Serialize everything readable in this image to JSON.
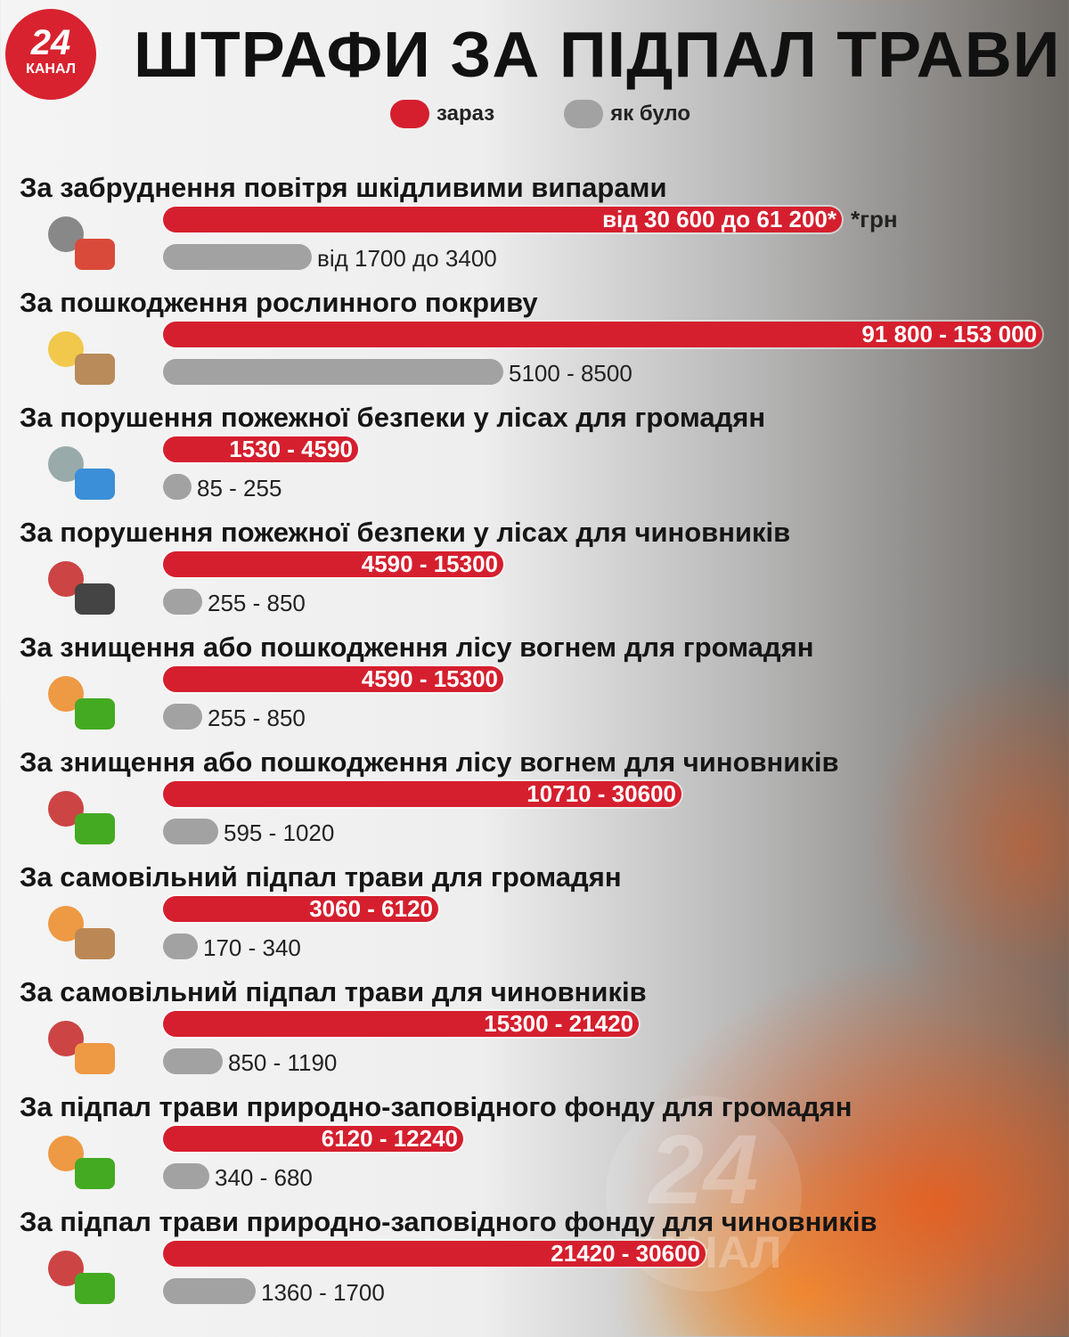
{
  "header": {
    "logo_number": "24",
    "logo_text": "КАНАЛ",
    "title": "ШТРАФИ ЗА ПІДПАЛ ТРАВИ"
  },
  "legend": {
    "now": "зараз",
    "before": "як було"
  },
  "unit_note": "*грн",
  "colors": {
    "now": "#d51f2e",
    "before": "#a2a2a2"
  },
  "chart_data": {
    "type": "bar",
    "title": "ШТРАФИ ЗА ПІДПАЛ ТРАВИ",
    "legend": [
      "зараз",
      "як було"
    ],
    "legend_placement": "top",
    "categories": [
      {
        "label": "За забруднення повітря шкідливими випарами",
        "icon": "car-smoke-icon",
        "now": "від 30 600 до 61 200*",
        "now_range": [
          30600,
          61200
        ],
        "before": "від 1700 до 3400",
        "before_range": [
          1700,
          3400
        ]
      },
      {
        "label": "За пошкодження рослинного покриву",
        "icon": "chainsaw-log-icon",
        "now": "91 800 - 153 000",
        "now_range": [
          91800,
          153000
        ],
        "before": "5100 - 8500",
        "before_range": [
          5100,
          8500
        ]
      },
      {
        "label": "За порушення пожежної безпеки у лісах для громадян",
        "icon": "garbage-pile-icon",
        "now": "1530 - 4590",
        "now_range": [
          1530,
          4590
        ],
        "before": "85 - 255",
        "before_range": [
          85,
          255
        ]
      },
      {
        "label": "За порушення пожежної безпеки у лісах для чиновників",
        "icon": "official-garbage-icon",
        "now": "4590 - 15300",
        "now_range": [
          4590,
          15300
        ],
        "before": "255 - 850",
        "before_range": [
          255,
          850
        ]
      },
      {
        "label": "За знищення або пошкодження лісу вогнем для громадян",
        "icon": "forest-fire-icon",
        "now": "4590 - 15300",
        "now_range": [
          4590,
          15300
        ],
        "before": "255 - 850",
        "before_range": [
          255,
          850
        ]
      },
      {
        "label": "За знищення або пошкодження лісу вогнем для чиновників",
        "icon": "official-forest-fire-icon",
        "now": "10710 - 30600",
        "now_range": [
          10710,
          30600
        ],
        "before": "595 - 1020",
        "before_range": [
          595,
          1020
        ]
      },
      {
        "label": "За самовільний підпал трави для громадян",
        "icon": "burning-match-icon",
        "now": "3060 - 6120",
        "now_range": [
          3060,
          6120
        ],
        "before": "170 - 340",
        "before_range": [
          170,
          340
        ]
      },
      {
        "label": "За самовільний підпал трави для чиновників",
        "icon": "official-match-icon",
        "now": "15300 - 21420",
        "now_range": [
          15300,
          21420
        ],
        "before": "850 - 1190",
        "before_range": [
          850,
          1190
        ]
      },
      {
        "label": "За підпал трави природно-заповідного фонду для громадян",
        "icon": "match-reserve-icon",
        "now": "6120 - 12240",
        "now_range": [
          6120,
          12240
        ],
        "before": "340 - 680",
        "before_range": [
          340,
          680
        ]
      },
      {
        "label": "За підпал трави природно-заповідного фонду для чиновників",
        "icon": "official-reserve-icon",
        "now": "21420 - 30600",
        "now_range": [
          21420,
          30600
        ],
        "before": "1360 - 1700",
        "before_range": [
          1360,
          1700
        ]
      }
    ]
  }
}
